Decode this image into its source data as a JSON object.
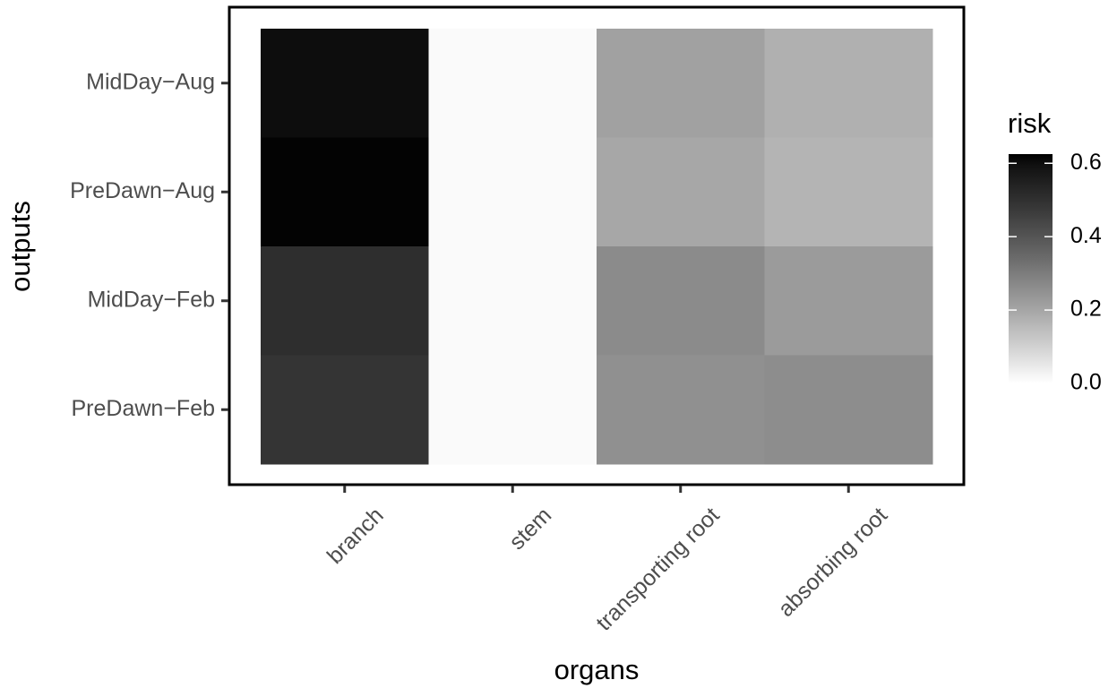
{
  "chart_data": {
    "type": "heatmap",
    "x_label": "organs",
    "y_label": "outputs",
    "legend_title": "risk",
    "x_categories": [
      "branch",
      "stem",
      "transporting root",
      "absorbing root"
    ],
    "y_categories": [
      "MidDay−Aug",
      "PreDawn−Aug",
      "MidDay−Feb",
      "PreDawn−Feb"
    ],
    "z": [
      [
        0.603,
        0.01,
        0.212,
        0.175
      ],
      [
        0.62,
        0.01,
        0.198,
        0.167
      ],
      [
        0.508,
        0.01,
        0.264,
        0.226
      ],
      [
        0.489,
        0.01,
        0.252,
        0.259
      ]
    ],
    "zlim": [
      0,
      0.625
    ],
    "zticks": [
      {
        "value": 0,
        "label": "0.0"
      },
      0.2,
      0.4,
      0.6
    ],
    "low_color": "#ffffff",
    "high_color": "#000000"
  }
}
